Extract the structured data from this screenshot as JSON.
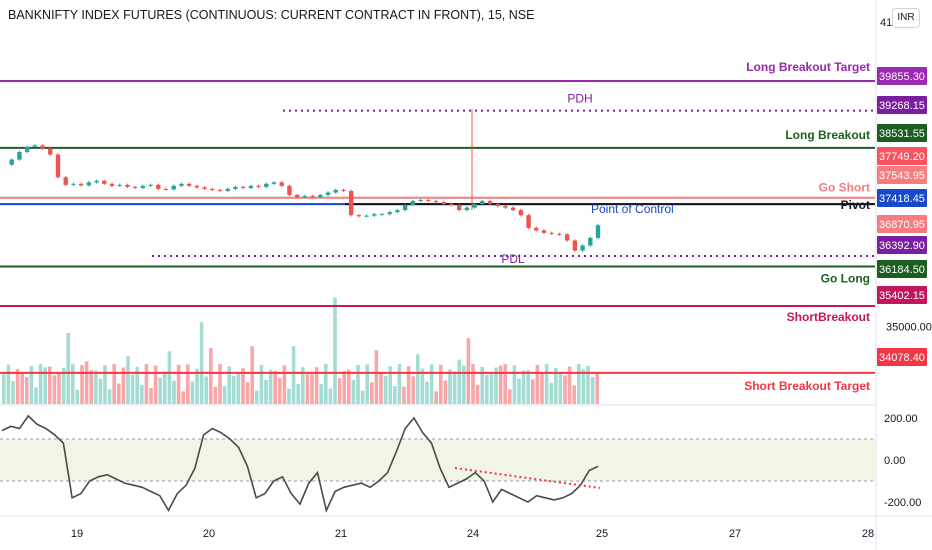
{
  "header": {
    "title": "BANKNIFTY INDEX FUTURES (CONTINUOUS: CURRENT CONTRACT IN FRONT), 15, NSE",
    "currency": "INR",
    "top_price_label": "41"
  },
  "chart_data": {
    "type": "candlestick",
    "x_ticks": [
      "19",
      "20",
      "21",
      "24",
      "25",
      "27",
      "28"
    ],
    "y_ticks": [
      {
        "value": 35000,
        "label": "35000.00"
      }
    ],
    "levels": [
      {
        "name": "Long Breakout Target",
        "value": 39855.3,
        "price_label": "39855.30",
        "color": "#9c27b0",
        "style": "solid"
      },
      {
        "name": "PDH",
        "value": 39268.15,
        "price_label": "39268.15",
        "color": "#7b1fa2",
        "style": "dotted"
      },
      {
        "name": "Long Breakout",
        "value": 38531.55,
        "price_label": "38531.55",
        "color": "#1b5e20",
        "style": "solid"
      },
      {
        "name": "",
        "value": 37749.2,
        "price_label": "37749.20",
        "color": "#f7525f",
        "style": "none"
      },
      {
        "name": "Go Short",
        "value": 37543.95,
        "price_label": "37543.95",
        "color": "#f77c80",
        "style": "solid"
      },
      {
        "name": "",
        "value": 37418.45,
        "price_label": "37418.45",
        "color": "#1848cc",
        "style": "solid"
      },
      {
        "name": "Pivot",
        "value": 37418.45,
        "price_label": "37418.45",
        "color": "#131722",
        "style": "solid"
      },
      {
        "name": "Point of Control",
        "value": 37050,
        "price_label": "",
        "color": "#1848cc",
        "style": "none"
      },
      {
        "name": "",
        "value": 36870.95,
        "price_label": "36870.95",
        "color": "#f77c80",
        "style": "none"
      },
      {
        "name": "PDL",
        "value": 36392.9,
        "price_label": "36392.90",
        "color": "#7b1fa2",
        "style": "dotted"
      },
      {
        "name": "Go Long",
        "value": 36184.5,
        "price_label": "36184.50",
        "color": "#1b5e20",
        "style": "solid"
      },
      {
        "name": "ShortBreakout",
        "value": 35402.15,
        "price_label": "35402.15",
        "color": "#c2185b",
        "style": "solid"
      },
      {
        "name": "Short Breakout Target",
        "value": 34078.4,
        "price_label": "34078.40",
        "color": "#f23645",
        "style": "solid"
      }
    ],
    "price_series": [
      38200,
      38300,
      38450,
      38550,
      38580,
      38520,
      38400,
      37950,
      37800,
      37820,
      37790,
      37850,
      37880,
      37820,
      37780,
      37800,
      37760,
      37740,
      37780,
      37800,
      37720,
      37710,
      37780,
      37820,
      37780,
      37750,
      37720,
      37700,
      37680,
      37720,
      37760,
      37740,
      37780,
      37760,
      37820,
      37850,
      37780,
      37600,
      37560,
      37580,
      37560,
      37600,
      37650,
      37700,
      37680,
      37200,
      37180,
      37190,
      37220,
      37220,
      37260,
      37300,
      37400,
      37480,
      37500,
      37480,
      37460,
      37420,
      37400,
      37300,
      37350,
      37420,
      37480,
      37420,
      37380,
      37350,
      37300,
      37200,
      36950,
      36900,
      36850,
      36830,
      36820,
      36700,
      36500,
      36600,
      36750,
      37000
    ],
    "oscillator": {
      "y_ticks": [
        {
          "value": 200,
          "label": "200.00"
        },
        {
          "value": 0,
          "label": "0.00"
        },
        {
          "value": -200,
          "label": "-200.00"
        }
      ],
      "band": [
        -100,
        100
      ],
      "values": [
        140,
        160,
        150,
        210,
        170,
        150,
        120,
        80,
        -180,
        -160,
        -100,
        -80,
        -70,
        -90,
        -110,
        -120,
        -130,
        -150,
        -170,
        -240,
        -160,
        -120,
        -40,
        120,
        150,
        130,
        100,
        60,
        -30,
        -180,
        -160,
        -100,
        -80,
        -160,
        -210,
        -110,
        -60,
        -240,
        -150,
        -130,
        -120,
        -110,
        -130,
        -100,
        -60,
        40,
        150,
        200,
        130,
        80,
        -40,
        -130,
        -110,
        -90,
        -60,
        -100,
        -200,
        -140,
        -160,
        -180,
        -200,
        -170,
        -180,
        -190,
        -180,
        -160,
        -120,
        -50,
        -30
      ]
    }
  }
}
